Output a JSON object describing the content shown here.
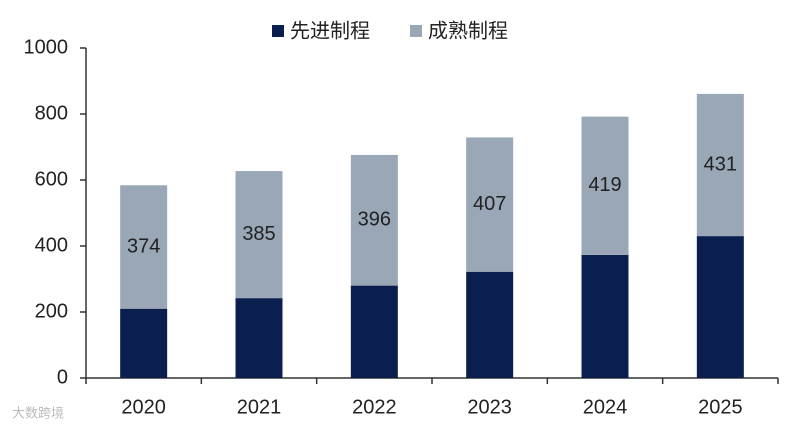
{
  "chart_data": {
    "type": "stacked_bar",
    "categories": [
      "2020",
      "2021",
      "2022",
      "2023",
      "2024",
      "2025"
    ],
    "series": [
      {
        "name": "先进制程",
        "color": "#0b1f4e",
        "values": [
          210,
          242,
          280,
          322,
          373,
          430
        ]
      },
      {
        "name": "成熟制程",
        "color": "#99a7b7",
        "values": [
          374,
          385,
          396,
          407,
          419,
          431
        ],
        "labels": true
      }
    ],
    "ylim": [
      0,
      1000
    ],
    "yticks": [
      0,
      200,
      400,
      600,
      800,
      1000
    ],
    "grid": false,
    "legend": "top",
    "watermark": "大数跨境"
  }
}
